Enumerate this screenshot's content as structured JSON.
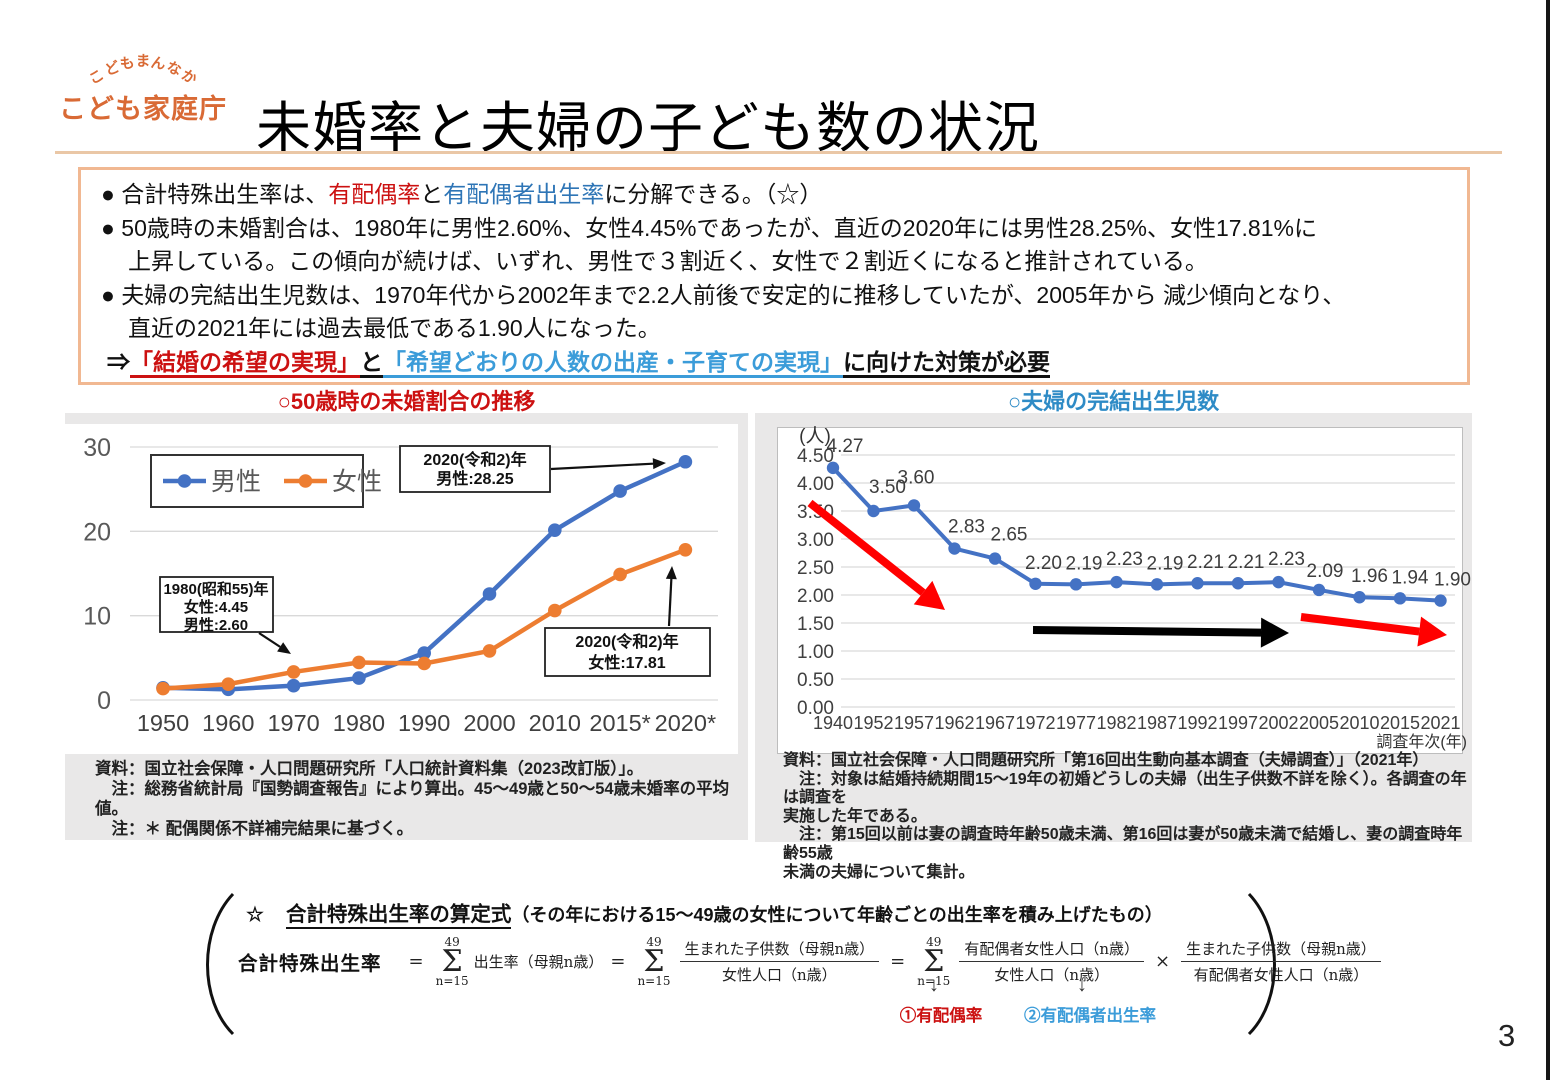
{
  "page": {
    "number": "3"
  },
  "header": {
    "logo_arc": [
      "こ",
      "ど",
      "も",
      "ま",
      "ん",
      "な",
      "か"
    ],
    "logo_main": "こども家庭庁",
    "title": "未婚率と夫婦の子ども数の状況"
  },
  "summary": {
    "b1_pre": "● 合計特殊出生率は、",
    "b1_red": "有配偶率",
    "b1_and": "と",
    "b1_blue": "有配偶者出生率",
    "b1_post": "に分解できる。（☆）",
    "b2_line1": "● 50歳時の未婚割合は、1980年に男性2.60%、女性4.45%であったが、直近の2020年には男性28.25%、女性17.81%に",
    "b2_line2": "上昇している。この傾向が続けば、いずれ、男性で３割近く、女性で２割近くになると推計されている。",
    "b3_line1": "● 夫婦の完結出生児数は、1970年代から2002年まで2.2人前後で安定的に推移していたが、2005年から 減少傾向となり、",
    "b3_line2": "直近の2021年には過去最低である1.90人になった。",
    "b4_arrow": "⇒",
    "b4_red": "「結婚の希望の実現」",
    "b4_and": "と",
    "b4_blue": "「希望どおりの人数の出産・子育ての実現」",
    "b4_tail": "に向けた対策が必要"
  },
  "left_figure": {
    "title": "○50歳時の未婚割合の推移",
    "notes": [
      "資料：国立社会保障・人口問題研究所「人口統計資料集（2023改訂版）」。",
      "　注：総務省統計局『国勢調査報告』により算出。45～49歳と50～54歳未婚率の平均値。",
      "　注：＊ 配偶関係不詳補完結果に基づく。"
    ]
  },
  "right_figure": {
    "title": "○夫婦の完結出生児数",
    "notes": [
      "資料：国立社会保障・人口問題研究所「第16回出生動向基本調査（夫婦調査）」（2021年）",
      "　注：対象は結婚持続期間15～19年の初婚どうしの夫婦（出生子供数不詳を除く）。各調査の年は調査を",
      "実施した年である。",
      "　注：第15回以前は妻の調査時年齢50歳未満、第16回は妻が50歳未満で結婚し、妻の調査時年齢55歳",
      "未満の夫婦について集計。"
    ]
  },
  "formula": {
    "star": "☆",
    "heading": "合計特殊出生率の算定式",
    "heading_paren": "（その年における15～49歳の女性について年齢ごとの出生率を積み上げたもの）",
    "lhs": "合計特殊出生率",
    "eq": "=",
    "times": "×",
    "sigma": "Σ",
    "sigma_top": "49",
    "sigma_bottom": "n=15",
    "term1": "出生率（母親n歳）",
    "frac1_num": "生まれた子供数（母親n歳）",
    "frac1_den": "女性人口（n歳）",
    "frac2_num": "有配偶者女性人口（n歳）",
    "frac2_den": "女性人口（n歳）",
    "frac3_num": "生まれた子供数（母親n歳）",
    "frac3_den": "有配偶者女性人口（n歳）",
    "down1": "↓",
    "down2": "↓",
    "label1": "①有配偶率",
    "label2": "②有配偶者出生率"
  },
  "colors": {
    "male_blue": "#4472C4",
    "female_orange": "#ED7D31",
    "text_red": "#CC1111",
    "text_blue_dark": "#2E75B6",
    "text_blue_light": "#3B9CD9",
    "arrow_red": "#FF0000",
    "logo_orange": "#D96A35"
  },
  "chart_data": [
    {
      "type": "line",
      "title": "○50歳時の未婚割合の推移",
      "categories": [
        "1950",
        "1960",
        "1970",
        "1980",
        "1990",
        "2000",
        "2010",
        "2015*",
        "2020*"
      ],
      "series": [
        {
          "name": "男性",
          "color": "#4472C4",
          "values": [
            1.45,
            1.26,
            1.7,
            2.6,
            5.57,
            12.57,
            20.14,
            24.77,
            28.25
          ]
        },
        {
          "name": "女性",
          "color": "#ED7D31",
          "values": [
            1.35,
            1.88,
            3.33,
            4.45,
            4.33,
            5.82,
            10.61,
            14.89,
            17.81
          ]
        }
      ],
      "ylim": [
        0,
        30
      ],
      "yticks": [
        0,
        10,
        20,
        30
      ],
      "grid": true,
      "legend_position": "top-left",
      "annotations": [
        {
          "id": "ann-2020-male",
          "lines": [
            "2020(令和2)年",
            "男性:28.25"
          ]
        },
        {
          "id": "ann-1980",
          "lines": [
            "1980(昭和55)年",
            "女性:4.45",
            "男性:2.60"
          ]
        },
        {
          "id": "ann-2020-female",
          "lines": [
            "2020(令和2)年",
            "女性:17.81"
          ]
        }
      ]
    },
    {
      "type": "line",
      "title": "○夫婦の完結出生児数",
      "unit": "(人)",
      "xlabel": "調査年次(年)",
      "categories": [
        "1940",
        "1952",
        "1957",
        "1962",
        "1967",
        "1972",
        "1977",
        "1982",
        "1987",
        "1992",
        "1997",
        "2002",
        "2005",
        "2010",
        "2015",
        "2021"
      ],
      "values": [
        4.27,
        3.5,
        3.6,
        2.83,
        2.65,
        2.2,
        2.19,
        2.23,
        2.19,
        2.21,
        2.21,
        2.23,
        2.09,
        1.96,
        1.94,
        1.9
      ],
      "ylim": [
        0,
        4.5
      ],
      "ytick_labels": [
        "4.50",
        "4.00",
        "3.50",
        "3.00",
        "2.50",
        "2.00",
        "1.50",
        "1.00",
        "0.50",
        "0.00"
      ],
      "grid": true,
      "line_color": "#4472C4",
      "trend_arrows": [
        "red-steep-down",
        "black-flat",
        "red-slight-down"
      ]
    }
  ]
}
